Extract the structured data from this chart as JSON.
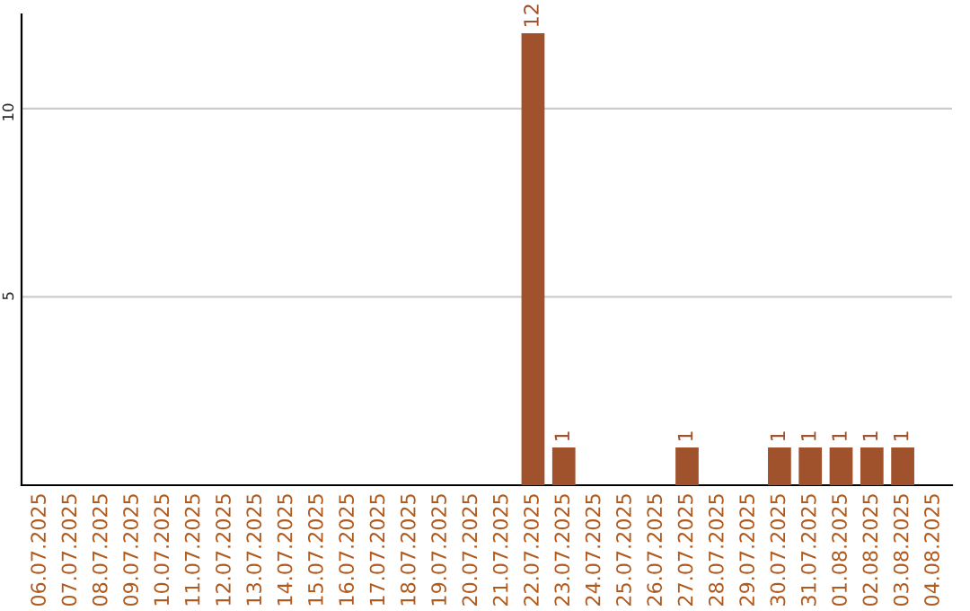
{
  "chart_data": {
    "type": "bar",
    "categories": [
      "06.07.2025",
      "07.07.2025",
      "08.07.2025",
      "09.07.2025",
      "10.07.2025",
      "11.07.2025",
      "12.07.2025",
      "13.07.2025",
      "14.07.2025",
      "15.07.2025",
      "16.07.2025",
      "17.07.2025",
      "18.07.2025",
      "19.07.2025",
      "20.07.2025",
      "21.07.2025",
      "22.07.2025",
      "23.07.2025",
      "24.07.2025",
      "25.07.2025",
      "26.07.2025",
      "27.07.2025",
      "28.07.2025",
      "29.07.2025",
      "30.07.2025",
      "31.07.2025",
      "01.08.2025",
      "02.08.2025",
      "03.08.2025",
      "04.08.2025"
    ],
    "values": [
      null,
      null,
      null,
      null,
      null,
      null,
      null,
      null,
      null,
      null,
      null,
      null,
      null,
      null,
      null,
      null,
      12,
      1,
      null,
      null,
      null,
      1,
      null,
      null,
      1,
      1,
      1,
      1,
      1,
      null
    ],
    "value_labels": [
      null,
      null,
      null,
      null,
      null,
      null,
      null,
      null,
      null,
      null,
      null,
      null,
      null,
      null,
      null,
      null,
      "12",
      "1",
      null,
      null,
      null,
      "1",
      null,
      null,
      "1",
      "1",
      "1",
      "1",
      "1",
      null
    ],
    "color": "#a0522d",
    "ylim": [
      0,
      12.5
    ],
    "yticks": [
      5,
      10
    ],
    "grid": "y"
  }
}
